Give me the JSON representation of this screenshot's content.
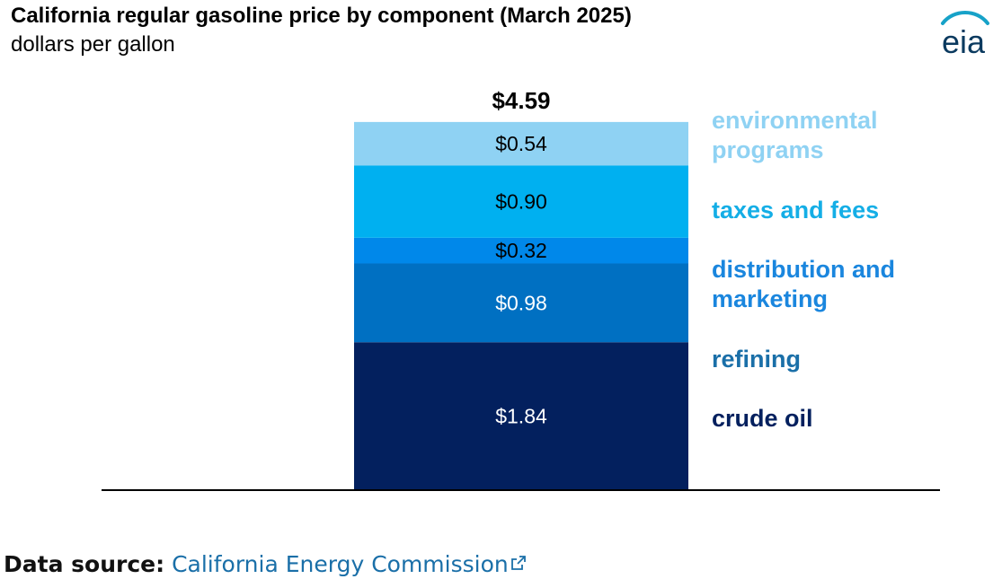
{
  "header": {
    "title": "California regular gasoline price by component (March 2025)",
    "subtitle": "dollars per gallon",
    "logo_text": "eia"
  },
  "chart_data": {
    "type": "bar",
    "stacked": true,
    "title": "California regular gasoline price by component (March 2025)",
    "ylabel": "dollars per gallon",
    "ylim": [
      0,
      4.59
    ],
    "total_label": "$4.59",
    "total": 4.59,
    "series": [
      {
        "name": "crude oil",
        "label_lines": [
          "crude oil"
        ],
        "value": 1.84,
        "value_label": "$1.84",
        "color": "#03205e",
        "label_color": "#03205e",
        "text_color": "#ffffff"
      },
      {
        "name": "refining",
        "label_lines": [
          "refining"
        ],
        "value": 0.98,
        "value_label": "$0.98",
        "color": "#0070c2",
        "label_color": "#1a6fa8",
        "text_color": "#ffffff"
      },
      {
        "name": "distribution and marketing",
        "label_lines": [
          "distribution and",
          "marketing"
        ],
        "value": 0.32,
        "value_label": "$0.32",
        "color": "#0088ea",
        "label_color": "#1a86de",
        "text_color": "#000000"
      },
      {
        "name": "taxes and fees",
        "label_lines": [
          "taxes and fees"
        ],
        "value": 0.9,
        "value_label": "$0.90",
        "color": "#00b0f0",
        "label_color": "#14aee6",
        "text_color": "#000000"
      },
      {
        "name": "environmental programs",
        "label_lines": [
          "environmental",
          "programs"
        ],
        "value": 0.54,
        "value_label": "$0.54",
        "color": "#8fd2f3",
        "label_color": "#8fd2f3",
        "text_color": "#000000"
      }
    ]
  },
  "footer": {
    "source_label": "Data source:",
    "source_link": "California Energy Commission",
    "link_color": "#1a6fa8",
    "icon": "external-link-icon"
  }
}
